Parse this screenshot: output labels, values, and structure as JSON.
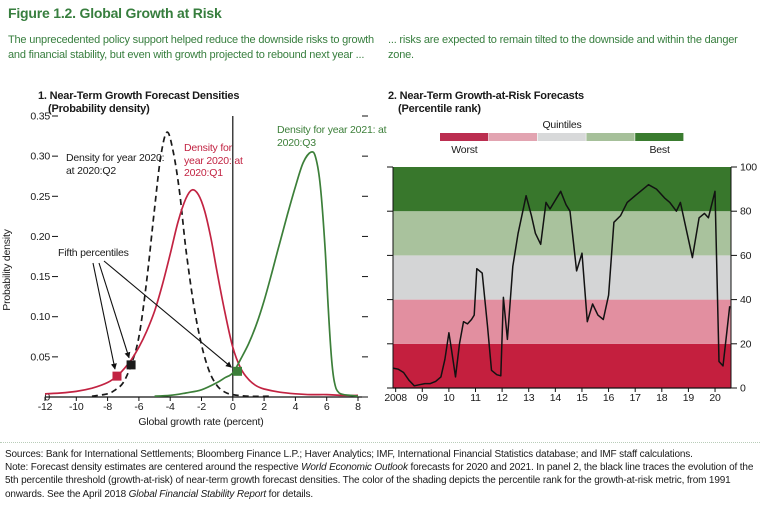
{
  "figure": {
    "title": "Figure 1.2. Global Growth at Risk"
  },
  "intro": {
    "left": "The unprecedented policy support helped reduce the downside risks to growth and financial stability, but even with growth projected to rebound next year ...",
    "right": "... risks are expected to remain tilted to the downside and within the danger zone."
  },
  "panel1": {
    "title": "1. Near-Term Growth Forecast Densities",
    "subtitle": "(Probability density)",
    "ylabel": "Probability density",
    "xlabel": "Global growth rate (percent)",
    "label_q2": "Density for year 2020: at 2020:Q2",
    "label_q1": "Density for year 2020: at 2020:Q1",
    "label_q3": "Density for year 2021: at 2020:Q3",
    "fifth_label": "Fifth percentiles"
  },
  "panel2": {
    "title": "2. Near-Term Growth-at-Risk Forecasts",
    "subtitle": "(Percentile rank)",
    "legend_title": "Quintiles",
    "legend_worst": "Worst",
    "legend_best": "Best"
  },
  "notes": {
    "sources": "Sources: Bank for International Settlements; Bloomberg Finance L.P.; Haver Analytics; IMF, International Financial Statistics database; and IMF staff calculations.",
    "note_1": "Note: Forecast density estimates are centered around the respective ",
    "weo": "World Economic Outlook",
    "note_2": " forecasts for 2020 and 2021. In panel 2, the black line traces the evolution of the 5th percentile threshold (growth-at-risk) of near-term growth forecast densities. The color of the shading depicts the percentile rank for the growth-at-risk metric, from 1991 onwards. See the April 2018 ",
    "gfsr": "Global Financial Stability Report",
    "note_3": " for details."
  },
  "chart_data": [
    {
      "type": "line",
      "panel": "1. Near-Term Growth Forecast Densities",
      "title": "Near-Term Growth Forecast Densities (Probability density)",
      "xlabel": "Global growth rate (percent)",
      "ylabel": "Probability density",
      "xlim": [
        -12,
        8
      ],
      "ylim": [
        0,
        0.35
      ],
      "xticks": [
        "-12",
        "-10",
        "-8",
        "-6",
        "-4",
        "-2",
        "0",
        "2",
        "4",
        "6",
        "8"
      ],
      "xtick_values": [
        -12,
        -10,
        -8,
        -6,
        -4,
        -2,
        0,
        2,
        4,
        6,
        8
      ],
      "yticks": [
        "0",
        "0.05",
        "0.10",
        "0.15",
        "0.20",
        "0.25",
        "0.30",
        "0.35"
      ],
      "ytick_values": [
        0,
        0.05,
        0.1,
        0.15,
        0.2,
        0.25,
        0.3,
        0.35
      ],
      "zero_line_x": 0,
      "series": [
        {
          "name": "Density for year 2020: at 2020:Q2",
          "color": "#1a1a1a",
          "dash": "6 4",
          "fifth_percentile": {
            "x": -6.5,
            "y": 0.04
          },
          "points": [
            [
              -9,
              0.001
            ],
            [
              -8,
              0.004
            ],
            [
              -7.5,
              0.009
            ],
            [
              -7,
              0.018
            ],
            [
              -6.5,
              0.04
            ],
            [
              -6,
              0.075
            ],
            [
              -5.5,
              0.145
            ],
            [
              -5,
              0.235
            ],
            [
              -4.6,
              0.3
            ],
            [
              -4.2,
              0.33
            ],
            [
              -3.8,
              0.305
            ],
            [
              -3.4,
              0.255
            ],
            [
              -3,
              0.185
            ],
            [
              -2.5,
              0.115
            ],
            [
              -2,
              0.065
            ],
            [
              -1.5,
              0.032
            ],
            [
              -1,
              0.014
            ],
            [
              -0.5,
              0.006
            ],
            [
              0,
              0.003
            ],
            [
              1,
              0.001
            ],
            [
              2.5,
              0.001
            ]
          ]
        },
        {
          "name": "Density for year 2020: at 2020:Q1",
          "color": "#c22342",
          "dash": null,
          "fifth_percentile": {
            "x": -7.4,
            "y": 0.026
          },
          "points": [
            [
              -12,
              0.004
            ],
            [
              -11,
              0.005
            ],
            [
              -10,
              0.007
            ],
            [
              -9,
              0.011
            ],
            [
              -8,
              0.018
            ],
            [
              -7.4,
              0.026
            ],
            [
              -7,
              0.034
            ],
            [
              -6.5,
              0.046
            ],
            [
              -6,
              0.062
            ],
            [
              -5.5,
              0.082
            ],
            [
              -5,
              0.107
            ],
            [
              -4.5,
              0.14
            ],
            [
              -4,
              0.178
            ],
            [
              -3.5,
              0.218
            ],
            [
              -3,
              0.247
            ],
            [
              -2.6,
              0.258
            ],
            [
              -2.2,
              0.252
            ],
            [
              -1.8,
              0.232
            ],
            [
              -1.4,
              0.198
            ],
            [
              -1,
              0.155
            ],
            [
              -0.5,
              0.105
            ],
            [
              0,
              0.062
            ],
            [
              0.5,
              0.036
            ],
            [
              1,
              0.022
            ],
            [
              1.5,
              0.014
            ],
            [
              2,
              0.01
            ],
            [
              3,
              0.006
            ],
            [
              4,
              0.004
            ],
            [
              5,
              0.003
            ],
            [
              6,
              0.003
            ],
            [
              7,
              0.002
            ],
            [
              8,
              0.002
            ]
          ]
        },
        {
          "name": "Density for year 2021: at 2020:Q3",
          "color": "#3c7f39",
          "dash": null,
          "fifth_percentile": {
            "x": 0.3,
            "y": 0.032
          },
          "points": [
            [
              -5,
              0.001
            ],
            [
              -4,
              0.002
            ],
            [
              -3,
              0.005
            ],
            [
              -2,
              0.009
            ],
            [
              -1,
              0.018
            ],
            [
              -0.5,
              0.024
            ],
            [
              0,
              0.03
            ],
            [
              0.5,
              0.047
            ],
            [
              1,
              0.066
            ],
            [
              1.5,
              0.09
            ],
            [
              2,
              0.12
            ],
            [
              2.5,
              0.155
            ],
            [
              3,
              0.192
            ],
            [
              3.5,
              0.228
            ],
            [
              4,
              0.262
            ],
            [
              4.5,
              0.292
            ],
            [
              5,
              0.305
            ],
            [
              5.3,
              0.298
            ],
            [
              5.6,
              0.262
            ],
            [
              5.9,
              0.185
            ],
            [
              6.1,
              0.11
            ],
            [
              6.3,
              0.05
            ],
            [
              6.5,
              0.018
            ],
            [
              6.8,
              0.005
            ],
            [
              7.5,
              0.002
            ],
            [
              8,
              0.001
            ]
          ]
        }
      ]
    },
    {
      "type": "line",
      "panel": "2. Near-Term Growth-at-Risk Forecasts",
      "title": "Near-Term Growth-at-Risk Forecasts (Percentile rank)",
      "xlabel": "",
      "ylabel": "Percentile rank",
      "xlim": [
        2007.9,
        2020.6
      ],
      "ylim": [
        0,
        100
      ],
      "xticks": [
        "2008",
        "09",
        "10",
        "11",
        "12",
        "13",
        "14",
        "15",
        "16",
        "17",
        "18",
        "19",
        "20"
      ],
      "xtick_values": [
        2008,
        2009,
        2010,
        2011,
        2012,
        2013,
        2014,
        2015,
        2016,
        2017,
        2018,
        2019,
        2020
      ],
      "yticks": [
        "0",
        "20",
        "40",
        "60",
        "80",
        "100"
      ],
      "ytick_values": [
        0,
        20,
        40,
        60,
        80,
        100
      ],
      "legend": {
        "title": "Quintiles",
        "worst": "Worst",
        "best": "Best",
        "segment_colors": [
          "#bb2e50",
          "#e2a4b1",
          "#d8d9da",
          "#a6c09a",
          "#3a7c2f"
        ]
      },
      "quintile_bands": [
        {
          "range": [
            0,
            20
          ],
          "color": "#c41f3e",
          "label": "Worst quintile"
        },
        {
          "range": [
            20,
            40
          ],
          "color": "#e28fa0",
          "label": "Second quintile"
        },
        {
          "range": [
            40,
            60
          ],
          "color": "#d4d5d6",
          "label": "Middle quintile"
        },
        {
          "range": [
            60,
            80
          ],
          "color": "#a9c29d",
          "label": "Fourth quintile"
        },
        {
          "range": [
            80,
            100
          ],
          "color": "#38772c",
          "label": "Best quintile"
        }
      ],
      "line_color": "#121212",
      "series": [
        {
          "name": "Growth-at-risk percentile rank",
          "points": [
            [
              2007.9,
              9
            ],
            [
              2008.1,
              8.5
            ],
            [
              2008.3,
              7
            ],
            [
              2008.5,
              3.5
            ],
            [
              2008.7,
              1
            ],
            [
              2008.9,
              1.5
            ],
            [
              2009.1,
              2
            ],
            [
              2009.3,
              2
            ],
            [
              2009.5,
              3
            ],
            [
              2009.7,
              5
            ],
            [
              2009.85,
              13
            ],
            [
              2010.0,
              25
            ],
            [
              2010.1,
              17
            ],
            [
              2010.25,
              5
            ],
            [
              2010.4,
              20
            ],
            [
              2010.55,
              30
            ],
            [
              2010.7,
              29
            ],
            [
              2010.85,
              31
            ],
            [
              2010.95,
              33
            ],
            [
              2011.05,
              54
            ],
            [
              2011.25,
              52
            ],
            [
              2011.45,
              28
            ],
            [
              2011.6,
              8
            ],
            [
              2011.8,
              6
            ],
            [
              2011.95,
              5.5
            ],
            [
              2012.05,
              41
            ],
            [
              2012.2,
              22
            ],
            [
              2012.4,
              55
            ],
            [
              2012.6,
              70
            ],
            [
              2012.9,
              87
            ],
            [
              2013.1,
              78
            ],
            [
              2013.25,
              70
            ],
            [
              2013.45,
              65
            ],
            [
              2013.65,
              84
            ],
            [
              2013.8,
              81
            ],
            [
              2014.0,
              85
            ],
            [
              2014.2,
              89
            ],
            [
              2014.4,
              83
            ],
            [
              2014.55,
              80
            ],
            [
              2014.8,
              53
            ],
            [
              2015.0,
              61
            ],
            [
              2015.2,
              30
            ],
            [
              2015.4,
              38
            ],
            [
              2015.6,
              33
            ],
            [
              2015.8,
              31
            ],
            [
              2016.0,
              42
            ],
            [
              2016.2,
              75
            ],
            [
              2016.45,
              78
            ],
            [
              2016.7,
              84
            ],
            [
              2016.9,
              86
            ],
            [
              2017.2,
              89
            ],
            [
              2017.5,
              92
            ],
            [
              2017.8,
              90
            ],
            [
              2018.1,
              86
            ],
            [
              2018.3,
              84
            ],
            [
              2018.55,
              80
            ],
            [
              2018.7,
              84
            ],
            [
              2018.95,
              70
            ],
            [
              2019.15,
              59
            ],
            [
              2019.4,
              77
            ],
            [
              2019.6,
              79
            ],
            [
              2019.75,
              77
            ],
            [
              2020.0,
              89
            ],
            [
              2020.15,
              12
            ],
            [
              2020.3,
              10
            ],
            [
              2020.45,
              26
            ],
            [
              2020.55,
              37
            ]
          ]
        }
      ]
    }
  ]
}
